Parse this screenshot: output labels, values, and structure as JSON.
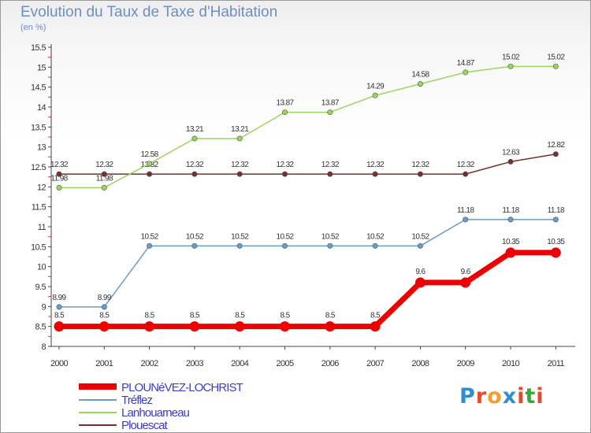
{
  "chart_data": {
    "type": "line",
    "title": "Evolution du Taux de Taxe d'Habitation",
    "subtitle": "(en %)",
    "x": [
      "2000",
      "2001",
      "2002",
      "2003",
      "2004",
      "2005",
      "2006",
      "2007",
      "2008",
      "2009",
      "2010",
      "2011"
    ],
    "ylim": [
      8,
      15.5
    ],
    "yticks": [
      "8",
      "8.5",
      "9",
      "9.5",
      "10",
      "10.5",
      "11",
      "11.5",
      "12",
      "12.5",
      "13",
      "13.5",
      "14",
      "14.5",
      "15",
      "15.5"
    ],
    "grid": false,
    "legend_position": "bottom-left",
    "series": [
      {
        "name": "Plouescat",
        "color": "#7a2f2f",
        "values": [
          12.32,
          12.32,
          12.32,
          12.32,
          12.32,
          12.32,
          12.32,
          12.32,
          12.32,
          12.32,
          12.63,
          12.82
        ],
        "labels": [
          "12.32",
          "12.32",
          "12.32",
          "12.32",
          "12.32",
          "12.32",
          "12.32",
          "12.32",
          "12.32",
          "12.32",
          "12.63",
          "12.82"
        ]
      },
      {
        "name": "Lanhouarneau",
        "color": "#99d65c",
        "values": [
          11.98,
          11.98,
          12.58,
          13.21,
          13.21,
          13.87,
          13.87,
          14.29,
          14.58,
          14.87,
          15.02,
          15.02
        ],
        "labels": [
          "11.98",
          "11.98",
          "12.58",
          "13.21",
          "13.21",
          "13.87",
          "13.87",
          "14.29",
          "14.58",
          "14.87",
          "15.02",
          "15.02"
        ]
      },
      {
        "name": "Tréflez",
        "color": "#6a9cc8",
        "values": [
          8.99,
          8.99,
          10.52,
          10.52,
          10.52,
          10.52,
          10.52,
          10.52,
          10.52,
          11.18,
          11.18,
          11.18
        ],
        "labels": [
          "8.99",
          "8.99",
          "10.52",
          "10.52",
          "10.52",
          "10.52",
          "10.52",
          "10.52",
          "10.52",
          "11.18",
          "11.18",
          "11.18"
        ]
      },
      {
        "name": "PLOUNéVEZ-LOCHRIST",
        "color": "#ee0000",
        "values": [
          8.5,
          8.5,
          8.5,
          8.5,
          8.5,
          8.5,
          8.5,
          8.5,
          9.6,
          9.6,
          10.35,
          10.35
        ],
        "labels": [
          "8.5",
          "8.5",
          "8.5",
          "8.5",
          "8.5",
          "8.5",
          "8.5",
          "8.5",
          "9.6",
          "9.6",
          "10.35",
          "10.35"
        ]
      }
    ]
  },
  "legend": {
    "items": [
      {
        "label": "PLOUNéVEZ-LOCHRIST",
        "color": "#ee0000"
      },
      {
        "label": "Tréflez",
        "color": "#6a9cc8"
      },
      {
        "label": "Lanhouarneau",
        "color": "#99d65c"
      },
      {
        "label": "Plouescat",
        "color": "#7a2f2f"
      }
    ]
  },
  "logo": {
    "text": "Proxiti",
    "colors": [
      "#2e8ed0",
      "#e64a2e",
      "#f0a030",
      "#2e8ed0",
      "#e64a2e",
      "#38a838",
      "#e64a2e"
    ]
  }
}
